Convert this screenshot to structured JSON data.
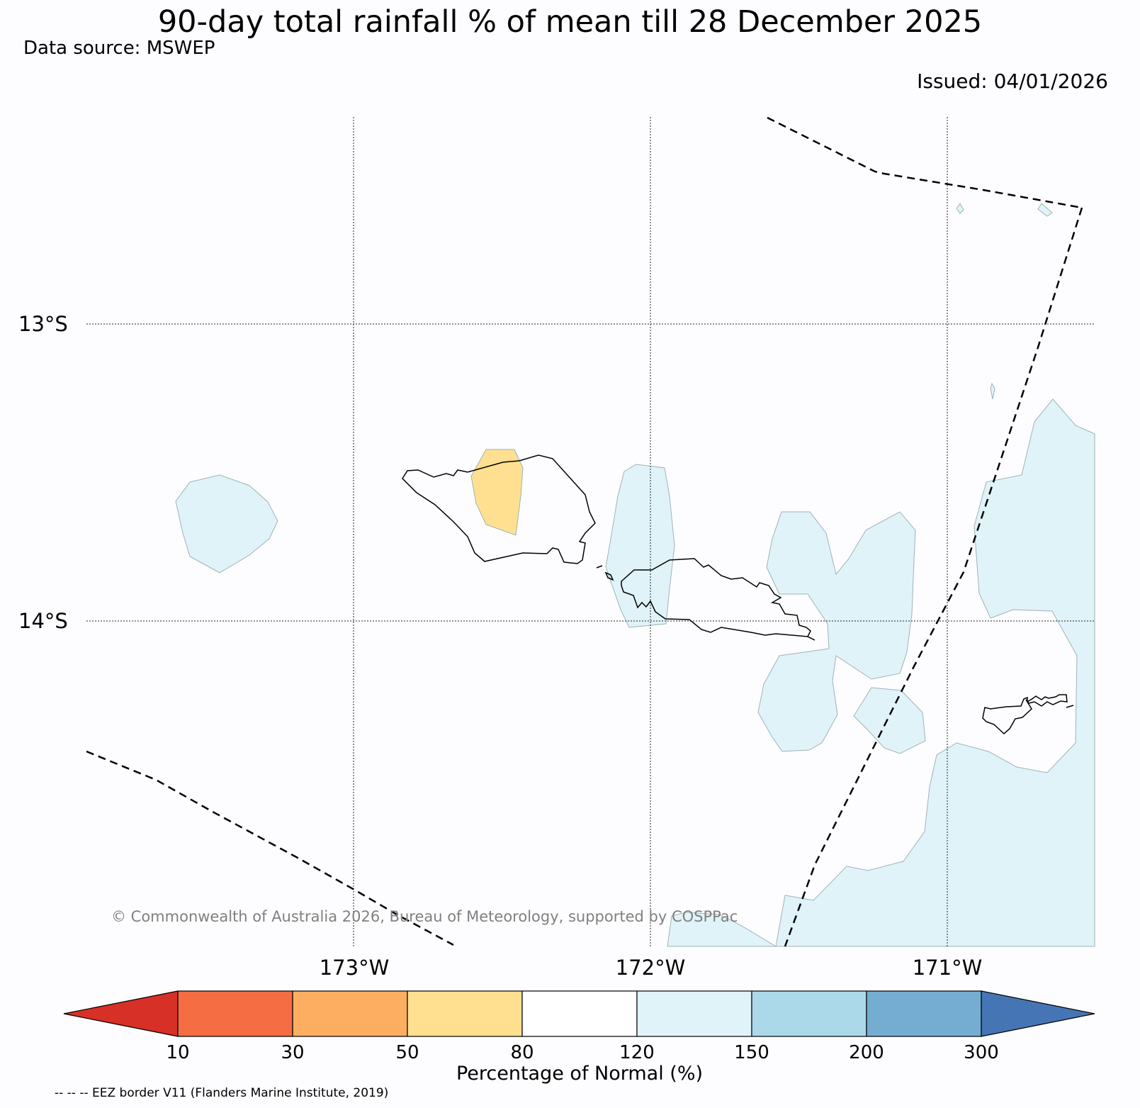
{
  "title": "90-day total rainfall % of mean till 28 December 2025",
  "data_source": "Data source: MSWEP",
  "issued": "Issued: 04/01/2026",
  "copyright": "© Commonwealth of Australia 2026, Bureau of Meteorology, supported by COSPPac",
  "eez_note": "-- -- -- EEZ border V11 (Flanders Marine Institute, 2019)",
  "axes": {
    "lat_labels": [
      "13°S",
      "14°S"
    ],
    "lon_labels": [
      "173°W",
      "172°W",
      "171°W"
    ]
  },
  "colorbar": {
    "label": "Percentage of Normal (%)",
    "ticks": [
      "10",
      "30",
      "50",
      "80",
      "120",
      "150",
      "200",
      "300"
    ],
    "under_color": "#d73027",
    "over_color": "#4575b4",
    "colors": [
      "#f46d43",
      "#fdae61",
      "#fee090",
      "#ffffff",
      "#e0f3f8",
      "#abd9e9",
      "#74add1"
    ]
  },
  "regions": [
    {
      "name": "region-west-ocean",
      "category": "120-150",
      "color": "#e0f3f8"
    },
    {
      "name": "region-savaii",
      "category": "50-80",
      "color": "#fee090"
    },
    {
      "name": "region-upolu-west",
      "category": "120-150",
      "color": "#e0f3f8"
    },
    {
      "name": "region-upolu-east",
      "category": "120-150",
      "color": "#e0f3f8"
    },
    {
      "name": "region-tutuila-east",
      "category": "120-150",
      "color": "#e0f3f8"
    }
  ]
}
